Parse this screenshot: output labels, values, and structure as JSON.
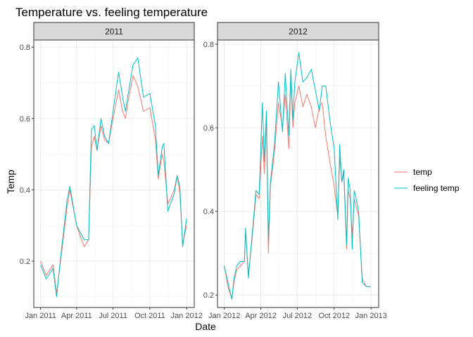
{
  "chart_data": {
    "type": "line",
    "title": "Temperature vs. feeling temperature",
    "xlabel": "Date",
    "ylabel": "Temp",
    "grid": true,
    "legend_position": "right",
    "colors": {
      "temp": "#F8766D",
      "feeling_temp": "#00BFC4"
    },
    "legend": [
      {
        "key": "temp",
        "label": "temp"
      },
      {
        "key": "feeling_temp",
        "label": "feeling temp"
      }
    ],
    "panels": [
      {
        "strip": "2011",
        "xlim": [
          "2010-12-15",
          "2012-01-20"
        ],
        "ylim": [
          0.07,
          0.82
        ],
        "yticks": [
          0.2,
          0.4,
          0.6,
          0.8
        ],
        "ytick_labels": [
          "0.2",
          "0.4",
          "0.6",
          "0.8"
        ],
        "xticks": [
          "2011-01-01",
          "2011-04-01",
          "2011-07-01",
          "2011-10-01",
          "2012-01-01"
        ],
        "xtick_labels": [
          "Jan 2011",
          "Apr 2011",
          "Jul 2011",
          "Oct 2011",
          "Jan 2012"
        ],
        "x": [
          "2011-01-01",
          "2011-01-15",
          "2011-02-01",
          "2011-02-10",
          "2011-02-20",
          "2011-03-08",
          "2011-03-15",
          "2011-04-01",
          "2011-04-20",
          "2011-05-01",
          "2011-05-08",
          "2011-05-15",
          "2011-05-22",
          "2011-06-01",
          "2011-06-10",
          "2011-06-20",
          "2011-07-01",
          "2011-07-15",
          "2011-07-25",
          "2011-08-01",
          "2011-08-08",
          "2011-08-20",
          "2011-09-01",
          "2011-09-15",
          "2011-10-01",
          "2011-10-15",
          "2011-10-22",
          "2011-11-01",
          "2011-11-05",
          "2011-11-15",
          "2011-12-01",
          "2011-12-08",
          "2011-12-15",
          "2011-12-22",
          "2012-01-01"
        ],
        "series": [
          {
            "key": "temp",
            "values": [
              0.2,
              0.16,
              0.19,
              0.11,
              0.2,
              0.35,
              0.4,
              0.3,
              0.24,
              0.26,
              0.52,
              0.55,
              0.51,
              0.58,
              0.54,
              0.53,
              0.6,
              0.68,
              0.62,
              0.6,
              0.65,
              0.72,
              0.69,
              0.62,
              0.63,
              0.54,
              0.43,
              0.5,
              0.48,
              0.36,
              0.4,
              0.44,
              0.39,
              0.25,
              0.3
            ]
          },
          {
            "key": "feeling_temp",
            "values": [
              0.19,
              0.15,
              0.18,
              0.1,
              0.21,
              0.37,
              0.41,
              0.3,
              0.26,
              0.26,
              0.57,
              0.58,
              0.51,
              0.6,
              0.55,
              0.53,
              0.62,
              0.73,
              0.66,
              0.62,
              0.67,
              0.75,
              0.77,
              0.66,
              0.67,
              0.58,
              0.44,
              0.52,
              0.53,
              0.34,
              0.39,
              0.44,
              0.41,
              0.24,
              0.32
            ]
          }
        ]
      },
      {
        "strip": "2012",
        "xlim": [
          "2011-12-15",
          "2013-01-20"
        ],
        "ylim": [
          0.17,
          0.81
        ],
        "yticks": [
          0.2,
          0.4,
          0.6,
          0.8
        ],
        "ytick_labels": [
          "0.2",
          "0.4",
          "0.6",
          "0.8"
        ],
        "xticks": [
          "2012-01-01",
          "2012-04-01",
          "2012-07-01",
          "2012-10-01",
          "2013-01-01"
        ],
        "xtick_labels": [
          "Jan 2012",
          "Apr 2012",
          "Jul 2012",
          "Oct 2012",
          "Jan 2013"
        ],
        "x": [
          "2012-01-01",
          "2012-01-10",
          "2012-01-20",
          "2012-01-25",
          "2012-02-01",
          "2012-02-10",
          "2012-02-20",
          "2012-02-23",
          "2012-03-01",
          "2012-03-10",
          "2012-03-20",
          "2012-03-28",
          "2012-04-05",
          "2012-04-10",
          "2012-04-15",
          "2012-04-20",
          "2012-04-25",
          "2012-05-05",
          "2012-05-15",
          "2012-05-25",
          "2012-06-01",
          "2012-06-10",
          "2012-06-15",
          "2012-06-20",
          "2012-06-25",
          "2012-07-05",
          "2012-07-15",
          "2012-07-25",
          "2012-08-05",
          "2012-08-15",
          "2012-08-25",
          "2012-09-01",
          "2012-09-10",
          "2012-09-20",
          "2012-10-01",
          "2012-10-10",
          "2012-10-15",
          "2012-10-20",
          "2012-10-25",
          "2012-11-01",
          "2012-11-05",
          "2012-11-10",
          "2012-11-15",
          "2012-11-20",
          "2012-11-25",
          "2012-12-01",
          "2012-12-10",
          "2012-12-20",
          "2012-12-25",
          "2012-12-31"
        ],
        "series": [
          {
            "key": "temp",
            "values": [
              0.27,
              0.22,
              0.19,
              0.23,
              0.26,
              0.27,
              0.28,
              0.35,
              0.25,
              0.33,
              0.44,
              0.43,
              0.58,
              0.49,
              0.62,
              0.3,
              0.46,
              0.54,
              0.66,
              0.6,
              0.68,
              0.55,
              0.72,
              0.6,
              0.66,
              0.7,
              0.65,
              0.68,
              0.65,
              0.6,
              0.65,
              0.66,
              0.58,
              0.52,
              0.46,
              0.39,
              0.53,
              0.47,
              0.49,
              0.31,
              0.45,
              0.43,
              0.34,
              0.43,
              0.41,
              0.39,
              0.24,
              0.22,
              0.22,
              0.22
            ]
          },
          {
            "key": "feeling_temp",
            "values": [
              0.27,
              0.23,
              0.19,
              0.24,
              0.27,
              0.28,
              0.28,
              0.36,
              0.24,
              0.34,
              0.45,
              0.44,
              0.66,
              0.52,
              0.64,
              0.33,
              0.47,
              0.56,
              0.71,
              0.59,
              0.73,
              0.58,
              0.74,
              0.62,
              0.71,
              0.78,
              0.71,
              0.72,
              0.74,
              0.69,
              0.64,
              0.7,
              0.7,
              0.62,
              0.55,
              0.38,
              0.56,
              0.47,
              0.5,
              0.32,
              0.48,
              0.45,
              0.31,
              0.45,
              0.43,
              0.4,
              0.23,
              0.22,
              0.22,
              0.22
            ]
          }
        ]
      }
    ]
  }
}
